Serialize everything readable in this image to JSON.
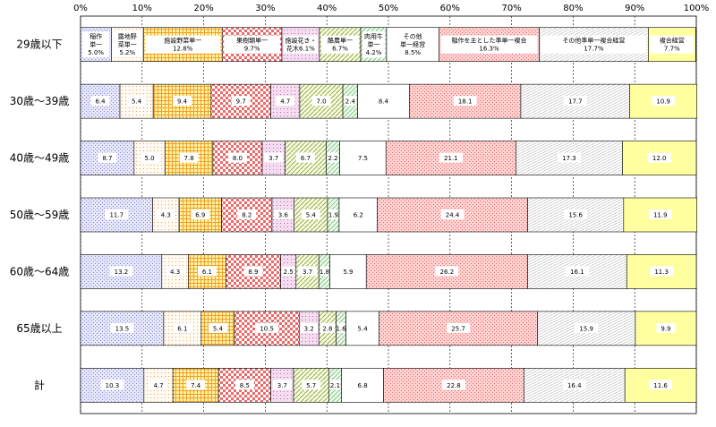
{
  "chart_data": {
    "type": "bar",
    "orientation": "horizontal",
    "stacked": "percent",
    "xlim": [
      0,
      100
    ],
    "x_ticks": [
      "0%",
      "10%",
      "20%",
      "30%",
      "40%",
      "50%",
      "60%",
      "70%",
      "80%",
      "90%",
      "100%"
    ],
    "grid": true,
    "categories": [
      "29歳以下",
      "30歳～39歳",
      "40歳～49歳",
      "50歳～59歳",
      "60歳～64歳",
      "65歳以上",
      "計"
    ],
    "series": [
      {
        "name": "稲作単一",
        "color": "#e6e6fa",
        "pattern": "dots-blue",
        "values": [
          5.0,
          6.4,
          8.7,
          11.7,
          13.2,
          13.5,
          10.3
        ]
      },
      {
        "name": "露地野菜単一",
        "color": "#fffaf2",
        "pattern": "dots-orange",
        "values": [
          5.2,
          5.4,
          5.0,
          4.3,
          4.3,
          6.1,
          4.7
        ]
      },
      {
        "name": "施設野菜単一",
        "color": "#fff2a0",
        "pattern": "grid-orange",
        "values": [
          12.8,
          9.4,
          7.8,
          6.9,
          6.1,
          5.4,
          7.4
        ]
      },
      {
        "name": "果樹類単一",
        "color": "#ffe6e6",
        "pattern": "checker-red",
        "values": [
          9.7,
          9.7,
          8.0,
          8.2,
          8.9,
          10.5,
          8.5
        ]
      },
      {
        "name": "施設花き・花木",
        "color": "#f5dcf0",
        "pattern": "dots-purple",
        "values": [
          6.1,
          4.7,
          3.7,
          3.6,
          2.5,
          3.2,
          3.7
        ]
      },
      {
        "name": "酪農単一",
        "color": "#f8fae6",
        "pattern": "diag-green",
        "values": [
          6.7,
          7.0,
          6.7,
          5.4,
          3.7,
          2.8,
          5.7
        ]
      },
      {
        "name": "肉用牛単一",
        "color": "#eef8ee",
        "pattern": "diag-green-light",
        "values": [
          4.2,
          2.4,
          2.2,
          1.9,
          1.8,
          1.6,
          2.1
        ]
      },
      {
        "name": "その他単一経営",
        "color": "#ffffff",
        "pattern": "none",
        "values": [
          8.5,
          8.4,
          7.5,
          6.2,
          5.9,
          5.4,
          6.8
        ]
      },
      {
        "name": "稲作を主とした準単一複合",
        "color": "#ffd0d0",
        "pattern": "dots-red",
        "values": [
          16.3,
          18.1,
          21.1,
          24.4,
          26.2,
          25.7,
          22.8
        ]
      },
      {
        "name": "その他準単一複合経営",
        "color": "#ffffff",
        "pattern": "hatch-gray",
        "values": [
          17.7,
          17.7,
          17.3,
          15.6,
          16.1,
          15.9,
          16.4
        ]
      },
      {
        "name": "複合経営",
        "color": "#ffffa0",
        "pattern": "none",
        "values": [
          7.7,
          10.9,
          12.0,
          11.9,
          11.3,
          9.9,
          11.6
        ]
      }
    ],
    "first_row_labels": [
      [
        "稲作",
        "単一",
        "5.0%"
      ],
      [
        "露地野",
        "菜単一",
        "5.2%"
      ],
      [
        "施設野菜単一",
        "12.8%"
      ],
      [
        "果樹類単一",
        "9.7%"
      ],
      [
        "施設花き・",
        "花木6.1%"
      ],
      [
        "酪農単一",
        "6.7%"
      ],
      [
        "肉用牛",
        "単一",
        "4.2%"
      ],
      [
        "その他",
        "単一経営",
        "8.5%"
      ],
      [
        "稲作を主とした準単一複合",
        "16.3%"
      ],
      [
        "その他準単一複合経営",
        "17.7%"
      ],
      [
        "複合経営",
        "7.7%"
      ]
    ],
    "value_labels": [
      [
        "6.4",
        "5.4",
        "9.4",
        "9.7",
        "4.7",
        "7.0",
        "2.4",
        "8.4",
        "18.1",
        "17.7",
        "10.9"
      ],
      [
        "8.7",
        "5.0",
        "7.8",
        "8.0",
        "3.7",
        "6.7",
        "2.2",
        "7.5",
        "21.1",
        "17.3",
        "12.0"
      ],
      [
        "11.7",
        "4.3",
        "6.9",
        "8.2",
        "3.6",
        "5.4",
        "1.9",
        "6.2",
        "24.4",
        "15.6",
        "11.9"
      ],
      [
        "13.2",
        "4.3",
        "6.1",
        "8.9",
        "2.5",
        "3.7",
        "1.8",
        "5.9",
        "26.2",
        "16.1",
        "11.3"
      ],
      [
        "13.5",
        "6.1",
        "5.4",
        "10.5",
        "3.2",
        "2.8",
        "1.6",
        "5.4",
        "25.7",
        "15.9",
        "9.9"
      ],
      [
        "10.3",
        "4.7",
        "7.4",
        "8.5",
        "3.7",
        "5.7",
        "2.1",
        "6.8",
        "22.8",
        "16.4",
        "11.6"
      ]
    ]
  }
}
